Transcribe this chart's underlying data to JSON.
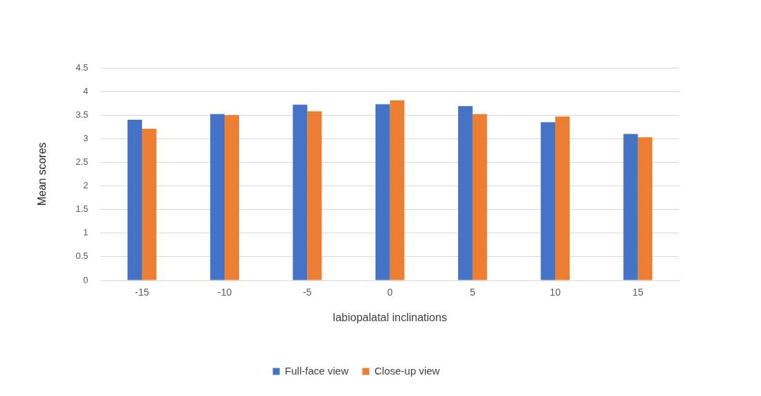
{
  "chart_data": {
    "type": "bar",
    "xlabel": "labiopalatal inclinations",
    "ylabel": "Mean scores",
    "categories": [
      "-15",
      "-10",
      "-5",
      "0",
      "5",
      "10",
      "15"
    ],
    "series": [
      {
        "name": "Full-face view",
        "color": "#4472c4",
        "values": [
          3.4,
          3.52,
          3.72,
          3.73,
          3.69,
          3.35,
          3.1
        ]
      },
      {
        "name": "Close-up view",
        "color": "#ed7d31",
        "values": [
          3.21,
          3.5,
          3.58,
          3.81,
          3.52,
          3.47,
          3.03
        ]
      }
    ],
    "ylim": [
      0,
      4.5
    ],
    "yticks": [
      0,
      0.5,
      1,
      1.5,
      2,
      2.5,
      3,
      3.5,
      4,
      4.5
    ],
    "grid": "y",
    "legend": "bottom"
  }
}
